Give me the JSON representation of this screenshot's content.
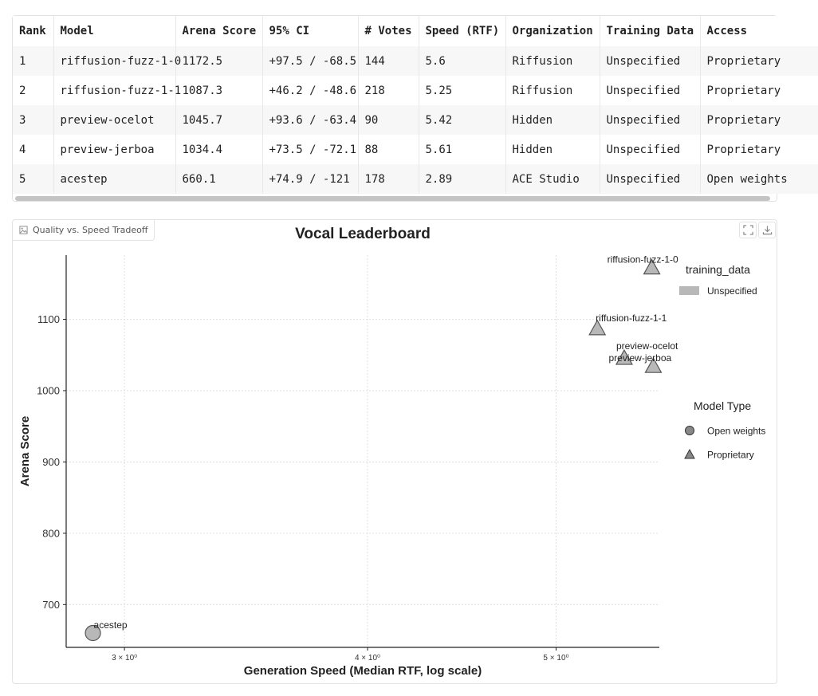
{
  "table": {
    "columns": [
      "Rank",
      "Model",
      "Arena Score",
      "95% CI",
      "# Votes",
      "Speed (RTF)",
      "Organization",
      "Training Data",
      "Access"
    ],
    "rows": [
      [
        "1",
        "riffusion-fuzz-1-0",
        "1172.5",
        "+97.5 / -68.5",
        "144",
        "5.6",
        "Riffusion",
        "Unspecified",
        "Proprietary"
      ],
      [
        "2",
        "riffusion-fuzz-1-1",
        "1087.3",
        "+46.2 / -48.6",
        "218",
        "5.25",
        "Riffusion",
        "Unspecified",
        "Proprietary"
      ],
      [
        "3",
        "preview-ocelot",
        "1045.7",
        "+93.6 / -63.4",
        "90",
        "5.42",
        "Hidden",
        "Unspecified",
        "Proprietary"
      ],
      [
        "4",
        "preview-jerboa",
        "1034.4",
        "+73.5 / -72.1",
        "88",
        "5.61",
        "Hidden",
        "Unspecified",
        "Proprietary"
      ],
      [
        "5",
        "acestep",
        "660.1",
        "+74.9 / -121",
        "178",
        "2.89",
        "ACE Studio",
        "Unspecified",
        "Open weights"
      ]
    ]
  },
  "plot": {
    "label": "Quality vs. Speed Tradeoff",
    "fullscreen_icon": "fullscreen-icon",
    "download_icon": "download-icon"
  },
  "chart_data": {
    "type": "scatter",
    "title": "Vocal Leaderboard",
    "xlabel": "Generation Speed (Median RTF, log scale)",
    "ylabel": "Arena Score",
    "xscale": "log",
    "xlim": [
      2.8,
      5.65
    ],
    "ylim": [
      640,
      1190
    ],
    "xticks": [
      {
        "value": 3,
        "label": "3 × 10⁰"
      },
      {
        "value": 4,
        "label": "4 × 10⁰"
      },
      {
        "value": 5,
        "label": "5 × 10⁰"
      }
    ],
    "yticks": [
      700,
      800,
      900,
      1000,
      1100
    ],
    "grid": true,
    "points": [
      {
        "label": "riffusion-fuzz-1-0",
        "x": 5.6,
        "y": 1172.5,
        "model_type": "Proprietary",
        "training_data": "Unspecified"
      },
      {
        "label": "riffusion-fuzz-1-1",
        "x": 5.25,
        "y": 1087.3,
        "model_type": "Proprietary",
        "training_data": "Unspecified"
      },
      {
        "label": "preview-ocelot",
        "x": 5.42,
        "y": 1045.7,
        "model_type": "Proprietary",
        "training_data": "Unspecified"
      },
      {
        "label": "preview-jerboa",
        "x": 5.61,
        "y": 1034.4,
        "model_type": "Proprietary",
        "training_data": "Unspecified"
      },
      {
        "label": "acestep",
        "x": 2.89,
        "y": 660.1,
        "model_type": "Open weights",
        "training_data": "Unspecified"
      }
    ],
    "legend_color": {
      "title": "training_data",
      "entries": [
        {
          "label": "Unspecified",
          "color": "#b8b8b8"
        }
      ]
    },
    "legend_shape": {
      "title": "Model Type",
      "entries": [
        {
          "label": "Open weights",
          "shape": "circle"
        },
        {
          "label": "Proprietary",
          "shape": "triangle"
        }
      ]
    },
    "legend_position": "right",
    "colors": {
      "marker_fill": "#b8b8b8",
      "marker_stroke": "#555555",
      "grid": "#d9d9d9"
    }
  }
}
